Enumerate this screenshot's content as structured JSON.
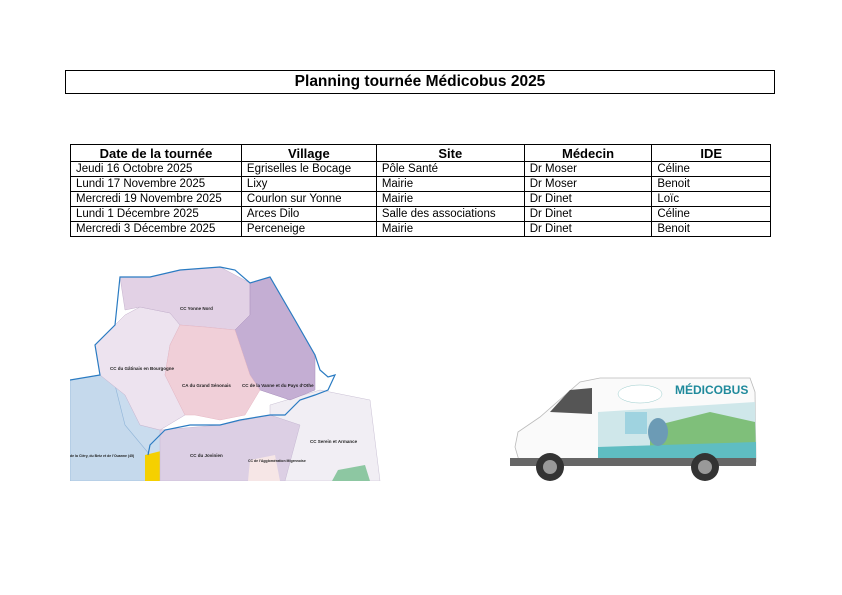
{
  "title": "Planning tournée Médicobus 2025",
  "table": {
    "headers": [
      "Date de la tournée",
      "Village",
      "Site",
      "Médecin",
      "IDE"
    ],
    "rows": [
      [
        "Jeudi 16 Octobre 2025",
        "Egriselles le Bocage",
        "Pôle Santé",
        "Dr Moser",
        "Céline"
      ],
      [
        "Lundi 17 Novembre 2025",
        "Lixy",
        "Mairie",
        "Dr Moser",
        "Benoit"
      ],
      [
        "Mercredi 19 Novembre 2025",
        "Courlon sur Yonne",
        "Mairie",
        "Dr Dinet",
        "Loïc"
      ],
      [
        "Lundi 1 Décembre 2025",
        "Arces Dilo",
        "Salle des associations",
        "Dr Dinet",
        "Céline"
      ],
      [
        "Mercredi 3 Décembre 2025",
        "Perceneige",
        "Mairie",
        "Dr Dinet",
        "Benoit"
      ]
    ]
  },
  "map": {
    "labels": {
      "yonne_nord": "CC Yonne Nord",
      "gatinais": "CC du Gâtinais en Bourgogne",
      "senonais": "CA du Grand Sénonais",
      "vanne": "CC de la Vanne et du Pays d'Othe",
      "serein": "CC Serein et Armance",
      "jovinien": "CC du Jovinien",
      "migennoise": "CC de l'Agglomération Migennoise",
      "clery": "de la Cléry, du Betz et de l'Ouanne (45)"
    }
  },
  "van": {
    "brand": "MÉDICOBUS"
  }
}
